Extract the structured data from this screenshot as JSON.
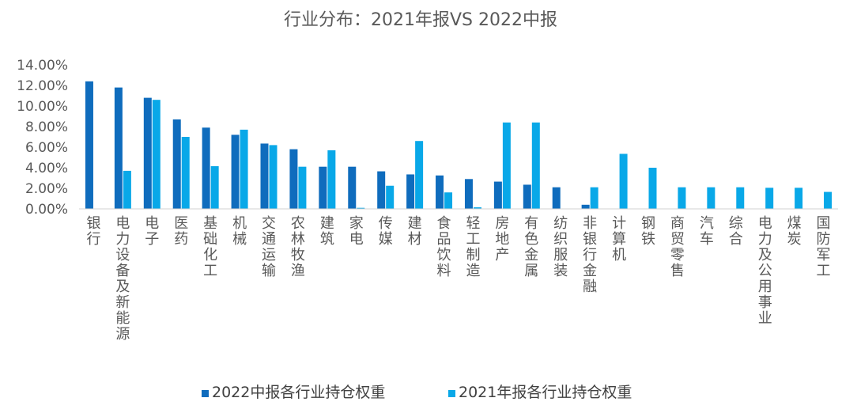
{
  "chart_data": {
    "type": "bar",
    "title": "行业分布：2021年报VS 2022中报",
    "xlabel": "",
    "ylabel": "",
    "ylim": [
      0,
      14
    ],
    "yticks": [
      "0.00%",
      "2.00%",
      "4.00%",
      "6.00%",
      "8.00%",
      "10.00%",
      "12.00%",
      "14.00%"
    ],
    "grid": false,
    "legend_position": "bottom",
    "categories": [
      "银行",
      "电力设备及新能源",
      "电子",
      "医药",
      "基础化工",
      "机械",
      "交通运输",
      "农林牧渔",
      "建筑",
      "家电",
      "传媒",
      "建材",
      "食品饮料",
      "轻工制造",
      "房地产",
      "有色金属",
      "纺织服装",
      "非银行金融",
      "计算机",
      "钢铁",
      "商贸零售",
      "汽车",
      "综合",
      "电力及公用事业",
      "煤炭",
      "国防军工"
    ],
    "series": [
      {
        "name": "2022中报各行业持仓权重",
        "color": "#0f6cbd",
        "values": [
          12.4,
          11.8,
          10.8,
          8.7,
          7.9,
          7.2,
          6.35,
          5.8,
          4.1,
          4.1,
          3.65,
          3.35,
          3.25,
          2.9,
          2.65,
          2.35,
          2.1,
          0.4,
          0,
          0,
          0,
          0,
          0,
          0,
          0,
          0
        ]
      },
      {
        "name": "2021年报各行业持仓权重",
        "color": "#09a8e8",
        "values": [
          0,
          3.7,
          10.6,
          7.0,
          4.15,
          7.7,
          6.2,
          4.1,
          5.7,
          0.1,
          2.25,
          6.6,
          1.6,
          0.15,
          8.4,
          8.4,
          0,
          2.1,
          5.35,
          4.0,
          2.1,
          2.1,
          2.1,
          2.05,
          2.05,
          1.65
        ]
      }
    ]
  }
}
